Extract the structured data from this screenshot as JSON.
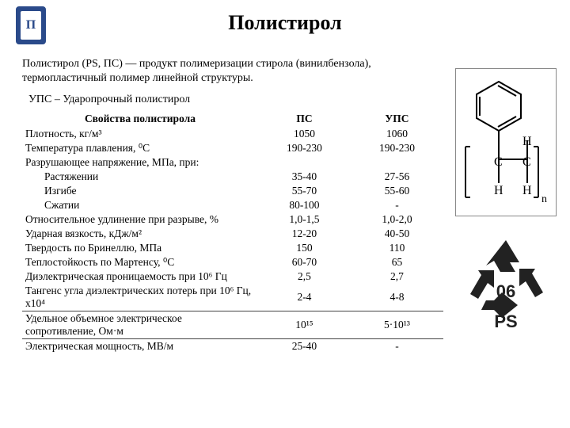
{
  "logo_text": "П",
  "title": "Полистирол",
  "intro": "Полистирол (PS, ПС) — продукт полимеризации стирола (винилбензола), термопластичный полимер линейной структуры.",
  "ups_line": "УПС – Ударопрочный полистирол",
  "table": {
    "headers": {
      "prop": "Свойства полистирола",
      "col1": "ПС",
      "col2": "УПС"
    },
    "rows": [
      {
        "label": "Плотность, кг/м³",
        "c1": "1050",
        "c2": "1060"
      },
      {
        "label": "Температура плавления, ⁰С",
        "c1": "190-230",
        "c2": "190-230"
      },
      {
        "label": "Разрушающее напряжение, МПа, при:",
        "c1": "",
        "c2": ""
      },
      {
        "label": "Растяжении",
        "c1": "35-40",
        "c2": "27-56",
        "indent": true
      },
      {
        "label": "Изгибе",
        "c1": "55-70",
        "c2": "55-60",
        "indent": true
      },
      {
        "label": "Сжатии",
        "c1": "80-100",
        "c2": "-",
        "indent": true
      },
      {
        "label": "Относительное удлинение при разрыве, %",
        "c1": "1,0-1,5",
        "c2": "1,0-2,0"
      },
      {
        "label": "Ударная вязкость, кДж/м²",
        "c1": "12-20",
        "c2": "40-50"
      },
      {
        "label": "Твердость по Бринеллю, МПа",
        "c1": "150",
        "c2": "110"
      },
      {
        "label": "Теплостойкость по Мартенсу, ⁰С",
        "c1": "60-70",
        "c2": "65"
      },
      {
        "label": "Диэлектрическая проницаемость при 10⁶ Гц",
        "c1": "2,5",
        "c2": "2,7"
      },
      {
        "label": "Тангенс угла диэлектрических потерь при 10⁶ Гц, х10⁴",
        "c1": "2-4",
        "c2": "4-8"
      },
      {
        "label": "Удельное объемное электрическое сопротивление, Ом·м",
        "c1": "10¹⁵",
        "c2": "5·10¹³",
        "sep": true
      },
      {
        "label": "Электрическая мощность, МВ/м",
        "c1": "25-40",
        "c2": "-",
        "sep": true
      }
    ]
  },
  "recycle": {
    "num": "06",
    "code": "PS"
  },
  "colors": {
    "border": "#888888",
    "logo": "#2a4a8a"
  }
}
